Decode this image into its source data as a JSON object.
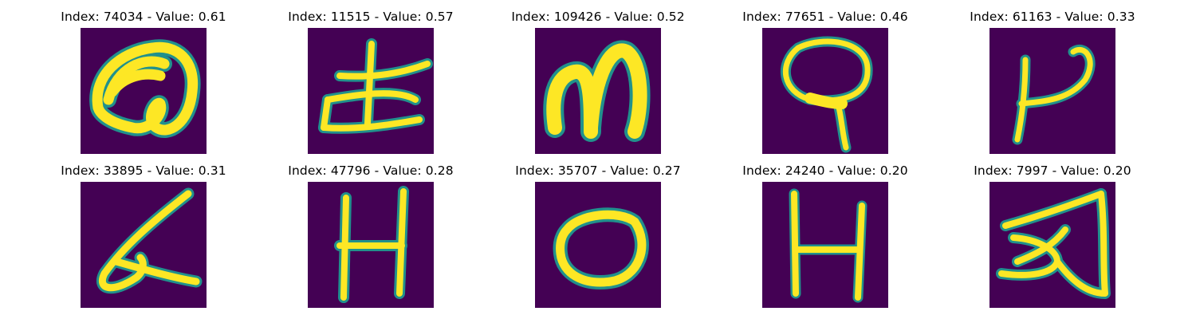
{
  "figure": {
    "background": "#440154",
    "stroke_color": "#fde725",
    "edge_color": "#21918c",
    "panels": [
      {
        "index": "74034",
        "value": "0.61",
        "title": "Index: 74034 - Value: 0.61",
        "glyph": "a-loop"
      },
      {
        "index": "11515",
        "value": "0.57",
        "title": "Index: 11515 - Value: 0.57",
        "glyph": "cross-boat"
      },
      {
        "index": "109426",
        "value": "0.52",
        "title": "Index: 109426 - Value: 0.52",
        "glyph": "m"
      },
      {
        "index": "77651",
        "value": "0.46",
        "title": "Index: 77651 - Value: 0.46",
        "glyph": "q-loop"
      },
      {
        "index": "61163",
        "value": "0.33",
        "title": "Index: 61163 - Value: 0.33",
        "glyph": "hook"
      },
      {
        "index": "33895",
        "value": "0.31",
        "title": "Index: 33895 - Value: 0.31",
        "glyph": "slanted-a"
      },
      {
        "index": "47796",
        "value": "0.28",
        "title": "Index: 47796 - Value: 0.28",
        "glyph": "H"
      },
      {
        "index": "35707",
        "value": "0.27",
        "title": "Index: 35707 - Value: 0.27",
        "glyph": "o"
      },
      {
        "index": "24240",
        "value": "0.20",
        "title": "Index: 24240 - Value: 0.20",
        "glyph": "H"
      },
      {
        "index": "7997",
        "value": "0.20",
        "title": "Index: 7997 - Value: 0.20",
        "glyph": "triangle-a"
      }
    ]
  }
}
